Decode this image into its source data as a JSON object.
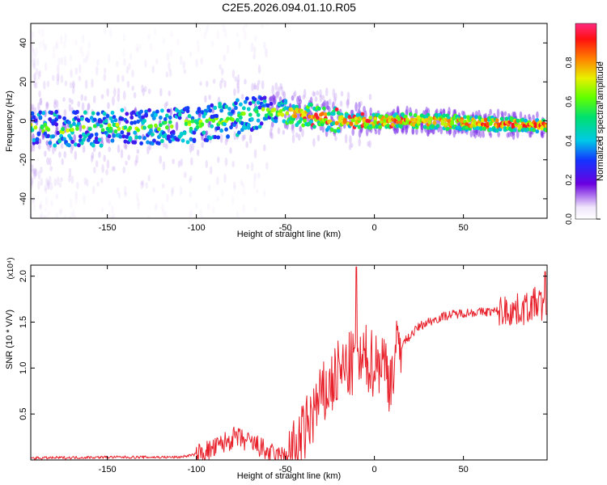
{
  "title": "C2E5.2026.094.01.10.R05",
  "colors": {
    "snr_line": "#e8202a",
    "axis": "#000000",
    "spectro_low": "#d9c2f5",
    "spectro_mid": "#5a00d8",
    "spectro_high": "#ff2020"
  },
  "chart_data": [
    {
      "type": "heatmap",
      "name": "spectrogram",
      "xlabel": "Height of straight line (km)",
      "ylabel": "Frequency (Hz)",
      "xlim": [
        -193,
        97
      ],
      "ylim": [
        -50,
        50
      ],
      "xticks": [
        -150,
        -100,
        -50,
        0,
        50
      ],
      "yticks": [
        -40,
        -20,
        0,
        20,
        40
      ],
      "colorbar": {
        "label": "Normalized spectral amplitude",
        "range": [
          0,
          1
        ],
        "ticks": [
          0.0,
          0.2,
          0.4,
          0.6,
          0.8
        ],
        "tick_labels": [
          "0.0",
          "0.2",
          "0.4",
          "0.6",
          "0.8"
        ]
      },
      "ridge": {
        "x": [
          -193,
          -160,
          -130,
          -100,
          -80,
          -65,
          -55,
          -45,
          -35,
          -25,
          -15,
          0,
          20,
          50,
          80,
          97
        ],
        "y": [
          -4,
          -4,
          -3,
          -2,
          1,
          4,
          5,
          4,
          3,
          1,
          0,
          0,
          0,
          -1,
          -2,
          -2
        ]
      }
    },
    {
      "type": "line",
      "name": "snr",
      "xlabel": "Height of straight line (km)",
      "ylabel": "SNR (10 * V/V)",
      "y_multiplier": "(x10⁴)",
      "xlim": [
        -193,
        97
      ],
      "ylim": [
        0,
        2.12
      ],
      "xticks": [
        -150,
        -100,
        -50,
        0,
        50
      ],
      "yticks": [
        0.5,
        1.0,
        1.5,
        2.0
      ],
      "ytick_labels": [
        "0.5",
        "1.0",
        "1.5",
        "2.0"
      ],
      "series": [
        {
          "name": "SNR",
          "x": [
            -193,
            -150,
            -110,
            -100,
            -90,
            -85,
            -78,
            -72,
            -65,
            -60,
            -55,
            -50,
            -45,
            -40,
            -35,
            -30,
            -25,
            -20,
            -15,
            -12,
            -10,
            -8,
            -5,
            0,
            5,
            8,
            10,
            12,
            15,
            20,
            25,
            30,
            40,
            50,
            60,
            70,
            80,
            85,
            90,
            93,
            95,
            97
          ],
          "y": [
            0.02,
            0.03,
            0.03,
            0.06,
            0.12,
            0.18,
            0.25,
            0.2,
            0.15,
            0.08,
            0.04,
            0.03,
            0.08,
            0.25,
            0.5,
            0.65,
            0.8,
            0.95,
            1.0,
            1.05,
            1.15,
            1.0,
            1.1,
            1.05,
            1.1,
            0.9,
            0.95,
            1.15,
            1.25,
            1.35,
            1.45,
            1.5,
            1.57,
            1.6,
            1.61,
            1.62,
            1.63,
            1.65,
            1.7,
            1.72,
            1.6,
            1.65
          ]
        }
      ],
      "spikes": [
        {
          "x": -10,
          "y": 2.1
        },
        {
          "x": 96,
          "y": 2.05
        }
      ]
    }
  ]
}
